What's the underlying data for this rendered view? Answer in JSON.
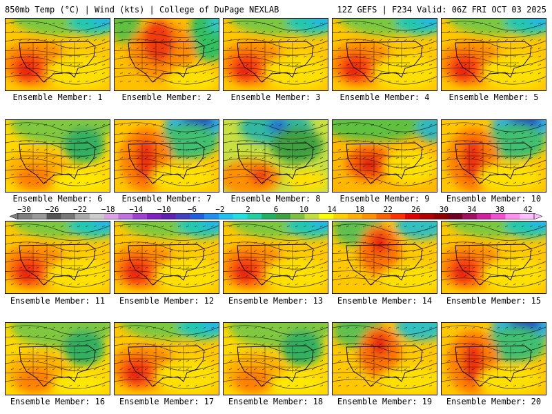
{
  "header": {
    "left": "850mb Temp (°C) | Wind (kts) | College of DuPage NEXLAB",
    "right": "12Z GEFS | F234 Valid: 06Z FRI OCT 03 2025"
  },
  "panels": [
    {
      "label": "Ensemble Member: 1",
      "style": "warm-sw"
    },
    {
      "label": "Ensemble Member: 2",
      "style": "warm-nw"
    },
    {
      "label": "Ensemble Member: 3",
      "style": "warm-sw"
    },
    {
      "label": "Ensemble Member: 4",
      "style": "warm-sw"
    },
    {
      "label": "Ensemble Member: 5",
      "style": "warm-sw"
    },
    {
      "label": "Ensemble Member: 6",
      "style": "mild"
    },
    {
      "label": "Ensemble Member: 7",
      "style": "cold-ne"
    },
    {
      "label": "Ensemble Member: 8",
      "style": "trough"
    },
    {
      "label": "Ensemble Member: 9",
      "style": "warm-s"
    },
    {
      "label": "Ensemble Member: 10",
      "style": "cold-ne"
    },
    {
      "label": "Ensemble Member: 11",
      "style": "warm-sw"
    },
    {
      "label": "Ensemble Member: 12",
      "style": "warm-sw"
    },
    {
      "label": "Ensemble Member: 13",
      "style": "warm-sw"
    },
    {
      "label": "Ensemble Member: 14",
      "style": "warm-c"
    },
    {
      "label": "Ensemble Member: 15",
      "style": "warm-sw"
    },
    {
      "label": "Ensemble Member: 16",
      "style": "mild"
    },
    {
      "label": "Ensemble Member: 17",
      "style": "warm-sw"
    },
    {
      "label": "Ensemble Member: 18",
      "style": "mild"
    },
    {
      "label": "Ensemble Member: 19",
      "style": "warm-c"
    },
    {
      "label": "Ensemble Member: 20",
      "style": "cold-ne"
    }
  ],
  "colorbar": {
    "ticks": [
      "−30",
      "−26",
      "−22",
      "−18",
      "−14",
      "−10",
      "−6",
      "−2",
      "2",
      "6",
      "10",
      "14",
      "18",
      "22",
      "26",
      "30",
      "34",
      "38",
      "42"
    ],
    "colors": [
      "#7f7f7f",
      "#999999",
      "#555555",
      "#777777",
      "#aaaaaa",
      "#cccccc",
      "#d9a3e6",
      "#c070e0",
      "#a040d0",
      "#8020c0",
      "#6020b0",
      "#4040c0",
      "#2060e0",
      "#2090f0",
      "#20c0f0",
      "#20e0e0",
      "#20d0a0",
      "#20b060",
      "#40a040",
      "#80c040",
      "#c0e040",
      "#ffff00",
      "#ffd000",
      "#ffb000",
      "#ff9000",
      "#ff6000",
      "#ff3000",
      "#e00000",
      "#b00000",
      "#900000",
      "#700020",
      "#a01060",
      "#d020a0",
      "#f050d0",
      "#ff90f0",
      "#ffc0ff"
    ]
  }
}
